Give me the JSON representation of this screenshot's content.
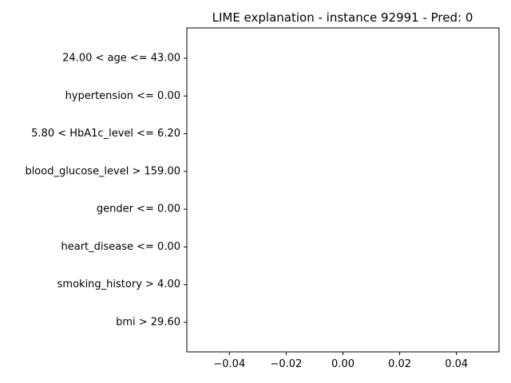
{
  "chart_data": {
    "type": "bar",
    "orientation": "horizontal",
    "title": "LIME explanation - instance 92991 - Pred: 0",
    "xlabel": "",
    "ylabel": "",
    "categories": [
      "24.00 < age <= 43.00",
      "hypertension <= 0.00",
      "5.80 < HbA1c_level <= 6.20",
      "blood_glucose_level > 159.00",
      "gender <= 0.00",
      "heart_disease <= 0.00",
      "smoking_history > 4.00",
      "bmi > 29.60"
    ],
    "values": [
      0,
      0,
      0,
      0,
      0,
      0,
      0,
      0
    ],
    "xlim": [
      -0.055,
      0.055
    ],
    "xticks": [
      -0.04,
      -0.02,
      0.0,
      0.02,
      0.04
    ],
    "xtick_labels": [
      "−0.04",
      "−0.02",
      "0.00",
      "0.02",
      "0.04"
    ],
    "grid": false,
    "legend": "none"
  }
}
